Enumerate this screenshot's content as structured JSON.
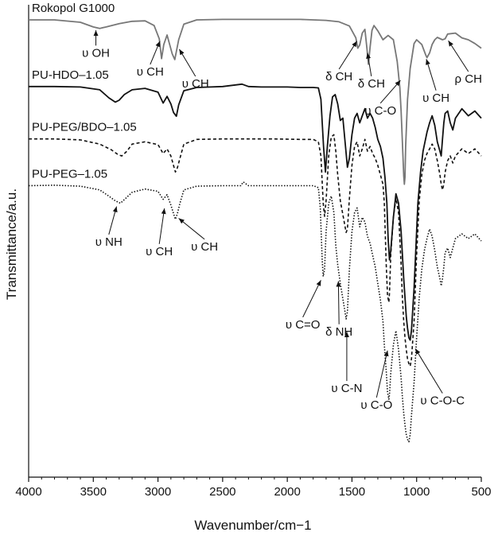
{
  "chart_data": {
    "type": "line",
    "xlabel": "Wavenumber/cm−1",
    "ylabel": "Transmittance/a.u.",
    "xlim": [
      4000,
      500
    ],
    "x_reversed": true,
    "ylim": [
      0,
      100
    ],
    "y_ticks_shown": false,
    "grid": false,
    "x_ticks": [
      4000,
      3500,
      3000,
      2500,
      2000,
      1500,
      1000,
      500
    ],
    "series": [
      {
        "name": "Rokopol G1000",
        "style": "solid",
        "color": "#777777",
        "x": [
          4000,
          3800,
          3600,
          3500,
          3450,
          3400,
          3300,
          3200,
          3100,
          3030,
          2990,
          2972,
          2955,
          2930,
          2890,
          2870,
          2840,
          2800,
          2700,
          2500,
          2300,
          2100,
          1900,
          1800,
          1700,
          1600,
          1520,
          1470,
          1455,
          1440,
          1420,
          1400,
          1385,
          1373,
          1360,
          1345,
          1330,
          1300,
          1260,
          1220,
          1180,
          1150,
          1130,
          1120,
          1110,
          1100,
          1095,
          1090,
          1085,
          1070,
          1050,
          1020,
          1000,
          960,
          930,
          920,
          900,
          880,
          860,
          840,
          800,
          780,
          760,
          700,
          650,
          600,
          550,
          500
        ],
        "y": [
          96.8,
          96.8,
          96.3,
          95.3,
          95.0,
          95.3,
          96.0,
          96.5,
          96.6,
          95.6,
          92.8,
          88.6,
          91.6,
          93.6,
          89.6,
          88.4,
          92.6,
          95.9,
          96.8,
          96.9,
          96.9,
          96.9,
          96.9,
          96.8,
          96.7,
          96.4,
          95.5,
          93.0,
          90.8,
          91.5,
          94.0,
          94.8,
          91.0,
          87.4,
          91.0,
          94.6,
          95.6,
          94.5,
          92.6,
          93.5,
          92.6,
          88.0,
          82.5,
          77.5,
          71.0,
          63.8,
          62.0,
          63.5,
          70.0,
          80.0,
          86.5,
          91.8,
          92.6,
          91.6,
          89.4,
          88.8,
          89.8,
          91.6,
          92.6,
          93.1,
          92.6,
          92.8,
          93.8,
          94.0,
          93.0,
          92.6,
          91.8,
          90.8
        ]
      },
      {
        "name": "PU-HDO–1.05",
        "style": "solid",
        "color": "#111111",
        "x": [
          4000,
          3800,
          3600,
          3450,
          3380,
          3330,
          3300,
          3260,
          3200,
          3100,
          3000,
          2960,
          2930,
          2900,
          2880,
          2858,
          2840,
          2800,
          2700,
          2500,
          2350,
          2300,
          2200,
          2000,
          1900,
          1800,
          1760,
          1740,
          1720,
          1705,
          1690,
          1670,
          1650,
          1630,
          1610,
          1590,
          1570,
          1550,
          1535,
          1520,
          1500,
          1480,
          1460,
          1440,
          1420,
          1400,
          1380,
          1360,
          1340,
          1320,
          1300,
          1280,
          1260,
          1245,
          1230,
          1220,
          1210,
          1200,
          1180,
          1160,
          1140,
          1120,
          1100,
          1090,
          1080,
          1070,
          1060,
          1050,
          1040,
          1020,
          1000,
          990,
          970,
          950,
          920,
          900,
          880,
          860,
          840,
          820,
          810,
          800,
          790,
          780,
          760,
          740,
          720,
          700,
          650,
          600,
          550,
          500
        ],
        "y": [
          82.7,
          82.7,
          82.6,
          82.0,
          80.3,
          79.4,
          79.8,
          81.0,
          82.0,
          82.3,
          81.5,
          79.2,
          80.6,
          79.0,
          77.2,
          76.4,
          78.8,
          81.8,
          82.5,
          82.7,
          83.2,
          82.7,
          82.6,
          82.6,
          82.5,
          82.5,
          82.4,
          80.0,
          70.0,
          64.6,
          70.0,
          76.5,
          80.5,
          81.0,
          79.0,
          75.5,
          76.0,
          70.0,
          65.6,
          67.5,
          72.5,
          76.0,
          77.0,
          75.0,
          76.5,
          78.0,
          76.0,
          77.0,
          76.0,
          74.0,
          71.5,
          70.0,
          67.5,
          63.5,
          58.0,
          50.5,
          46.0,
          48.0,
          55.0,
          60.0,
          58.0,
          52.0,
          42.0,
          38.0,
          34.0,
          31.5,
          29.5,
          29.0,
          31.0,
          40.0,
          52.0,
          58.0,
          64.5,
          69.0,
          73.0,
          75.0,
          76.5,
          74.5,
          71.0,
          69.0,
          68.0,
          71.5,
          75.0,
          77.0,
          77.5,
          75.0,
          73.5,
          76.0,
          78.0,
          76.5,
          77.5,
          76.0
        ]
      },
      {
        "name": "PU-PEG/BDO–1.05",
        "style": "dashed",
        "color": "#111111",
        "x": [
          4000,
          3800,
          3600,
          3450,
          3360,
          3310,
          3280,
          3240,
          3200,
          3100,
          3000,
          2960,
          2930,
          2900,
          2880,
          2865,
          2850,
          2830,
          2800,
          2700,
          2500,
          2300,
          2100,
          1900,
          1800,
          1760,
          1740,
          1722,
          1712,
          1700,
          1680,
          1660,
          1640,
          1625,
          1610,
          1590,
          1560,
          1545,
          1535,
          1520,
          1500,
          1480,
          1460,
          1440,
          1420,
          1400,
          1380,
          1360,
          1340,
          1320,
          1300,
          1280,
          1260,
          1250,
          1235,
          1225,
          1215,
          1210,
          1200,
          1180,
          1160,
          1140,
          1120,
          1110,
          1100,
          1090,
          1080,
          1070,
          1060,
          1050,
          1040,
          1020,
          1000,
          980,
          960,
          940,
          920,
          900,
          880,
          860,
          840,
          820,
          810,
          800,
          790,
          780,
          760,
          740,
          720,
          700,
          650,
          600,
          550,
          500
        ],
        "y": [
          71.6,
          71.6,
          71.4,
          70.5,
          69.3,
          68.3,
          68.0,
          69.0,
          70.5,
          71.0,
          70.4,
          68.5,
          69.5,
          68.0,
          66.0,
          64.6,
          65.5,
          67.5,
          70.5,
          71.5,
          71.6,
          71.6,
          71.6,
          71.5,
          71.5,
          71.0,
          68.0,
          58.0,
          55.2,
          58.5,
          68.0,
          72.0,
          72.5,
          69.0,
          64.0,
          58.5,
          54.0,
          51.8,
          52.5,
          59.0,
          66.0,
          70.0,
          71.0,
          68.0,
          69.5,
          71.5,
          69.0,
          70.0,
          68.5,
          67.5,
          66.0,
          64.0,
          62.0,
          58.0,
          45.0,
          38.5,
          37.0,
          39.0,
          47.0,
          55.0,
          59.0,
          56.0,
          45.0,
          38.0,
          33.0,
          29.5,
          27.0,
          25.0,
          24.0,
          23.5,
          25.0,
          33.0,
          47.0,
          58.5,
          64.0,
          67.0,
          68.5,
          69.5,
          70.5,
          69.5,
          67.0,
          64.0,
          62.0,
          60.8,
          62.0,
          64.5,
          67.0,
          68.0,
          66.5,
          68.0,
          69.5,
          68.5,
          69.5,
          68.0
        ]
      },
      {
        "name": "PU-PEG–1.05",
        "style": "dotted",
        "color": "#111111",
        "x": [
          4000,
          3800,
          3600,
          3450,
          3380,
          3330,
          3290,
          3250,
          3200,
          3100,
          3000,
          2960,
          2930,
          2900,
          2880,
          2865,
          2850,
          2830,
          2800,
          2700,
          2500,
          2360,
          2340,
          2300,
          2100,
          1900,
          1800,
          1760,
          1745,
          1730,
          1722,
          1712,
          1700,
          1680,
          1660,
          1640,
          1625,
          1610,
          1590,
          1560,
          1545,
          1535,
          1520,
          1500,
          1480,
          1460,
          1440,
          1420,
          1400,
          1380,
          1360,
          1340,
          1320,
          1300,
          1280,
          1260,
          1250,
          1235,
          1225,
          1215,
          1210,
          1200,
          1180,
          1160,
          1140,
          1120,
          1110,
          1100,
          1090,
          1080,
          1070,
          1060,
          1050,
          1040,
          1020,
          1000,
          980,
          960,
          940,
          920,
          900,
          880,
          860,
          840,
          820,
          810,
          800,
          790,
          780,
          760,
          740,
          720,
          700,
          650,
          600,
          550,
          500
        ],
        "y": [
          61.7,
          61.8,
          61.6,
          60.8,
          59.5,
          58.5,
          58.0,
          59.0,
          60.3,
          61.0,
          60.5,
          58.8,
          59.8,
          57.6,
          55.8,
          54.6,
          55.8,
          58.0,
          60.8,
          61.6,
          61.7,
          61.7,
          62.5,
          61.7,
          61.7,
          61.7,
          61.7,
          61.3,
          57.0,
          46.0,
          42.5,
          44.0,
          52.0,
          58.0,
          59.5,
          56.0,
          49.0,
          45.0,
          41.0,
          36.0,
          33.5,
          35.0,
          44.0,
          52.0,
          56.0,
          57.0,
          53.0,
          55.0,
          54.0,
          51.0,
          49.5,
          47.0,
          44.5,
          41.0,
          37.5,
          33.0,
          28.0,
          22.5,
          18.0,
          16.5,
          17.5,
          22.0,
          28.0,
          31.0,
          27.0,
          21.0,
          17.0,
          13.5,
          11.0,
          9.0,
          8.0,
          7.5,
          9.0,
          13.0,
          20.0,
          29.5,
          38.0,
          44.0,
          48.0,
          50.5,
          52.5,
          51.0,
          48.0,
          44.5,
          42.0,
          40.5,
          42.0,
          44.5,
          47.5,
          48.5,
          46.5,
          48.5,
          50.5,
          51.5,
          50.5,
          51.5,
          50.0
        ]
      }
    ],
    "annotations": [
      {
        "text": "υ OH",
        "x": 3480,
        "y": 89,
        "target_x": 3480,
        "target_y": 94.6
      },
      {
        "text": "υ CH",
        "x": 3060,
        "y": 85,
        "target_x": 2985,
        "target_y": 92.3
      },
      {
        "text": "υ CH",
        "x": 2710,
        "y": 82.5,
        "target_x": 2835,
        "target_y": 90.6
      },
      {
        "text": "δ CH",
        "x": 1600,
        "y": 84,
        "target_x": 1462,
        "target_y": 92.3
      },
      {
        "text": "δ CH",
        "x": 1350,
        "y": 82.5,
        "target_x": 1380,
        "target_y": 89.8
      },
      {
        "text": "υ C-O",
        "x": 1280,
        "y": 76.8,
        "target_x": 1125,
        "target_y": 84.0
      },
      {
        "text": "υ CH",
        "x": 850,
        "y": 79.5,
        "target_x": 925,
        "target_y": 88.5
      },
      {
        "text": "ρ CH",
        "x": 600,
        "y": 83.5,
        "target_x": 755,
        "target_y": 92.4
      },
      {
        "text": "υ NH",
        "x": 3380,
        "y": 49,
        "target_x": 3320,
        "target_y": 57.3
      },
      {
        "text": "υ CH",
        "x": 2990,
        "y": 47,
        "target_x": 2950,
        "target_y": 56.9
      },
      {
        "text": "υ CH",
        "x": 2640,
        "y": 48,
        "target_x": 2840,
        "target_y": 54.8
      },
      {
        "text": "υ C=O",
        "x": 1880,
        "y": 31.5,
        "target_x": 1740,
        "target_y": 41.7
      },
      {
        "text": "δ NH",
        "x": 1600,
        "y": 30,
        "target_x": 1605,
        "target_y": 41.5
      },
      {
        "text": "υ C-N",
        "x": 1540,
        "y": 18,
        "target_x": 1540,
        "target_y": 30.8
      },
      {
        "text": "υ C-O",
        "x": 1310,
        "y": 14.5,
        "target_x": 1225,
        "target_y": 26.8
      },
      {
        "text": "υ C-O-C",
        "x": 800,
        "y": 15.4,
        "target_x": 1010,
        "target_y": 27.2
      }
    ]
  }
}
